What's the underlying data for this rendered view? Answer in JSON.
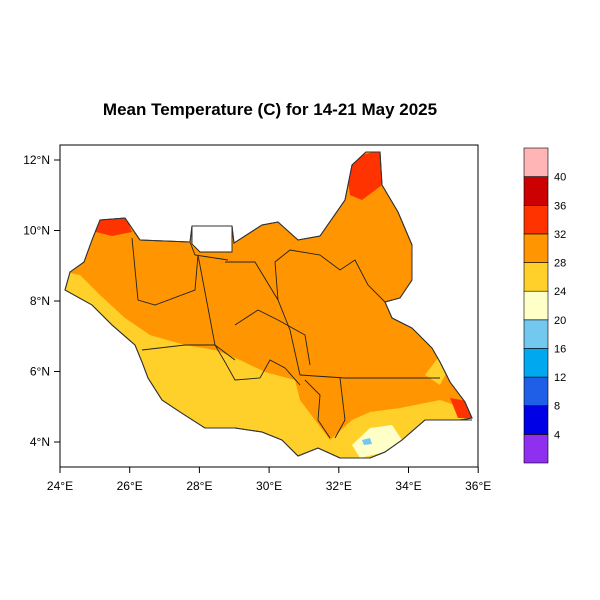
{
  "title": "Mean Temperature (C) for 14-21 May 2025",
  "lon_ticks": [
    "24°E",
    "26°E",
    "28°E",
    "30°E",
    "32°E",
    "34°E",
    "36°E"
  ],
  "lat_ticks": [
    "4°N",
    "6°N",
    "8°N",
    "10°N",
    "12°N"
  ],
  "colorbar": {
    "colors": [
      "#8f2ff0",
      "#0000e6",
      "#1f5fe8",
      "#00a8f0",
      "#73c8f0",
      "#ffffc8",
      "#ffd02a",
      "#ff9500",
      "#ff3300",
      "#cc0000",
      "#ffb5b5"
    ],
    "labels": [
      "4",
      "8",
      "12",
      "16",
      "20",
      "24",
      "28",
      "32",
      "36",
      "40"
    ]
  },
  "zone_colors": {
    "hot_28_32": "#ff9500",
    "warm_24_28": "#ffd02a",
    "mild_20_24": "#ffffc8",
    "very_hot_32_36": "#ff3300",
    "cool_spot": "#73c8f0"
  }
}
